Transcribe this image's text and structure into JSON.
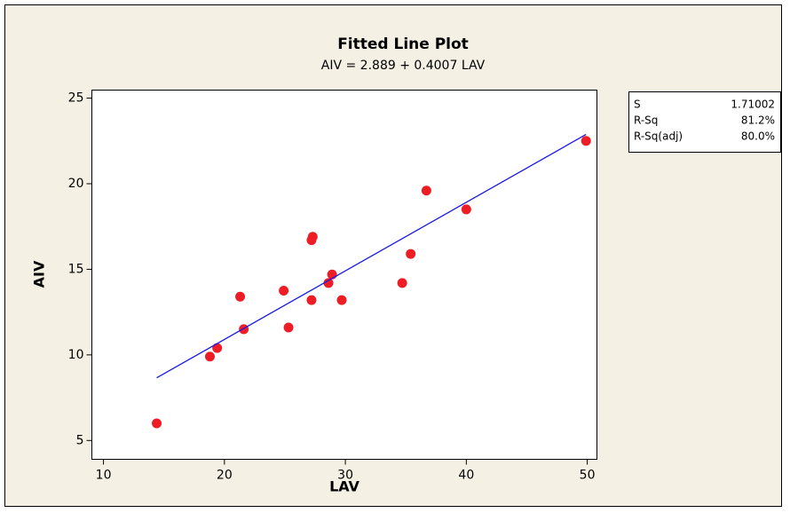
{
  "chart_data": {
    "type": "scatter",
    "title": "Fitted Line Plot",
    "subtitle": "AIV =  2.889 + 0.4007 LAV",
    "x_label": "LAV",
    "y_label": "AIV",
    "xlim": [
      9.04,
      50.8
    ],
    "xticks": [
      10,
      20,
      30,
      40,
      50
    ],
    "ylim": [
      3.9,
      25.47
    ],
    "yticks": [
      5,
      10,
      15,
      20,
      25
    ],
    "series": [
      {
        "type": "scatter",
        "color": "#ee1c25",
        "x": [
          14.4,
          18.8,
          19.4,
          21.3,
          21.6,
          24.9,
          25.3,
          27.2,
          27.2,
          27.3,
          28.6,
          28.9,
          29.7,
          34.7,
          35.4,
          36.7,
          40.0,
          49.9
        ],
        "values": [
          6.0,
          9.9,
          10.4,
          13.4,
          11.5,
          13.75,
          11.6,
          13.2,
          16.7,
          16.9,
          14.2,
          14.7,
          13.2,
          14.2,
          15.9,
          19.6,
          18.5,
          22.5
        ]
      },
      {
        "type": "line",
        "color": "#1a1ae6",
        "x": [
          14.4,
          49.9
        ],
        "values": [
          8.66,
          22.88
        ]
      }
    ],
    "stats": [
      [
        "S",
        "1.71002"
      ],
      [
        "R-Sq",
        "81.2%"
      ],
      [
        "R-Sq(adj)",
        "80.0%"
      ]
    ]
  }
}
